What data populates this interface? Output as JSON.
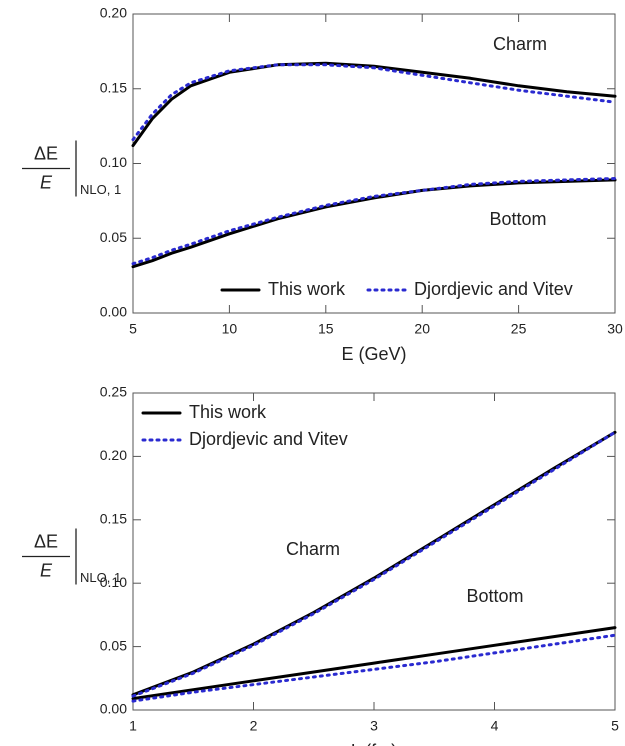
{
  "chart_data": [
    {
      "type": "line",
      "xlabel": "E (GeV)",
      "ylabel_numerator": "ΔE",
      "ylabel_denominator": "E",
      "ylabel_subscript": "NLO, 1",
      "annotations": [
        "Charm",
        "Bottom"
      ],
      "legend": "lower right",
      "x": [
        5,
        6,
        7,
        8,
        10,
        12.5,
        15,
        17.5,
        20,
        22.5,
        25,
        27.5,
        30
      ],
      "xlim": [
        5,
        30
      ],
      "xticks": [
        5,
        10,
        15,
        20,
        25,
        30
      ],
      "ylim": [
        0,
        0.2
      ],
      "yticks": [
        {
          "value": 0,
          "label": "0.00"
        },
        0.05,
        {
          "value": 0.1,
          "label": "0.10"
        },
        0.15,
        {
          "value": 0.2,
          "label": "0.20"
        }
      ],
      "series": [
        {
          "name": "This work",
          "color": "#000000",
          "dash": "solid",
          "values": [
            [
              0.112,
              0.13,
              0.143,
              0.152,
              0.161,
              0.166,
              0.167,
              0.165,
              0.161,
              0.157,
              0.152,
              0.148,
              0.145
            ],
            [
              0.031,
              0.035,
              0.04,
              0.044,
              0.053,
              0.063,
              0.071,
              0.077,
              0.082,
              0.085,
              0.087,
              0.088,
              0.089
            ]
          ]
        },
        {
          "name": "Djordjevic and Vitev",
          "color": "#2a2ad0",
          "dash": "dotted",
          "values": [
            [
              0.116,
              0.133,
              0.146,
              0.154,
              0.162,
              0.166,
              0.166,
              0.164,
              0.159,
              0.154,
              0.149,
              0.145,
              0.141
            ],
            [
              0.033,
              0.037,
              0.042,
              0.046,
              0.055,
              0.064,
              0.072,
              0.078,
              0.082,
              0.086,
              0.088,
              0.089,
              0.09
            ]
          ]
        }
      ]
    },
    {
      "type": "line",
      "xlabel": "L (fm)",
      "ylabel_numerator": "ΔE",
      "ylabel_denominator": "E",
      "ylabel_subscript": "NLO, 1",
      "annotations": [
        "Charm",
        "Bottom"
      ],
      "legend": "upper left",
      "x": [
        1,
        1.5,
        2,
        2.5,
        3,
        3.5,
        4,
        4.5,
        5
      ],
      "xlim": [
        1,
        5
      ],
      "xticks": [
        1,
        2,
        3,
        4,
        5
      ],
      "ylim": [
        0,
        0.25
      ],
      "yticks": [
        {
          "value": 0,
          "label": "0.00"
        },
        0.05,
        {
          "value": 0.1,
          "label": "0.10"
        },
        0.15,
        {
          "value": 0.2,
          "label": "0.20"
        },
        0.25
      ],
      "series": [
        {
          "name": "This work",
          "color": "#000000",
          "dash": "solid",
          "values": [
            [
              0.012,
              0.03,
              0.052,
              0.077,
              0.104,
              0.133,
              0.162,
              0.191,
              0.219
            ],
            [
              0.009,
              0.016,
              0.023,
              0.03,
              0.037,
              0.044,
              0.051,
              0.058,
              0.065
            ]
          ]
        },
        {
          "name": "Djordjevic and Vitev",
          "color": "#2a2ad0",
          "dash": "dotted",
          "values": [
            [
              0.011,
              0.029,
              0.051,
              0.076,
              0.103,
              0.132,
              0.161,
              0.19,
              0.219
            ],
            [
              0.007,
              0.014,
              0.02,
              0.026,
              0.032,
              0.038,
              0.045,
              0.052,
              0.059
            ]
          ]
        }
      ]
    }
  ]
}
